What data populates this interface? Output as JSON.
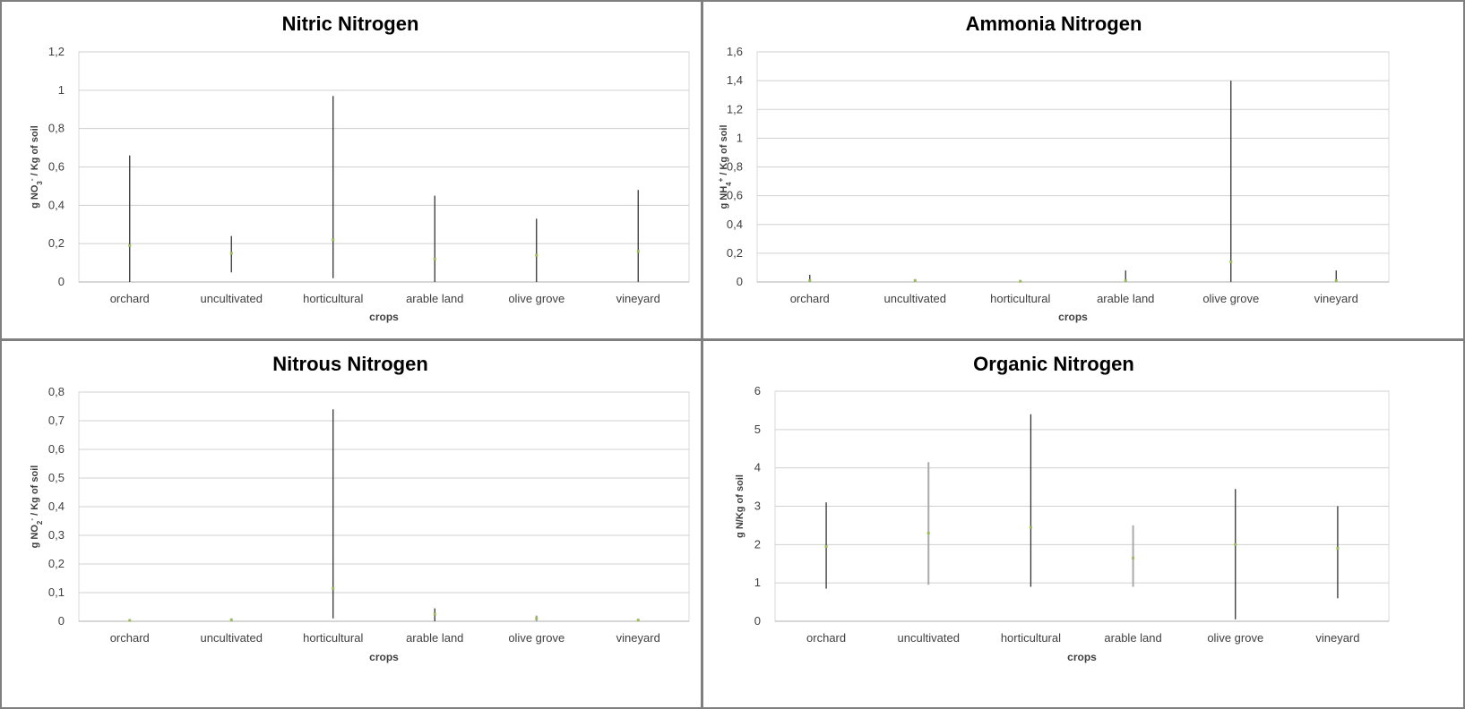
{
  "chart_data": [
    {
      "type": "scatter",
      "title": "Nitric Nitrogen",
      "xlabel": "crops",
      "ylabel_parts": [
        "g NO",
        "3",
        "-",
        " / Kg of soil"
      ],
      "ylim": [
        0,
        1.2
      ],
      "ytick_step": 0.2,
      "yticks": [
        "0",
        "0,2",
        "0,4",
        "0,6",
        "0,8",
        "1",
        "1,2"
      ],
      "grid": true,
      "categories": [
        "orchard",
        "uncultivated",
        "horticultural",
        "arable land",
        "olive grove",
        "vineyard"
      ],
      "series": [
        {
          "mean": [
            0.19,
            0.15,
            0.22,
            0.12,
            0.14,
            0.16
          ],
          "min": [
            0.0,
            0.05,
            0.02,
            0.0,
            0.0,
            0.0
          ],
          "max": [
            0.66,
            0.24,
            0.97,
            0.45,
            0.33,
            0.48
          ],
          "bar_color": [
            "#333333",
            "#333333",
            "#333333",
            "#333333",
            "#333333",
            "#333333"
          ]
        }
      ],
      "mean_color": "#9bbb59"
    },
    {
      "type": "scatter",
      "title": "Ammonia Nitrogen",
      "xlabel": "crops",
      "ylabel_parts": [
        "g NH",
        "4",
        "+",
        " / Kg of soil"
      ],
      "ylim": [
        0,
        1.6
      ],
      "ytick_step": 0.2,
      "yticks": [
        "0",
        "0,2",
        "0,4",
        "0,6",
        "0,8",
        "1",
        "1,2",
        "1,4",
        "1,6"
      ],
      "grid": true,
      "categories": [
        "orchard",
        "uncultivated",
        "horticultural",
        "arable land",
        "olive grove",
        "vineyard"
      ],
      "series": [
        {
          "mean": [
            0.01,
            0.01,
            0.005,
            0.01,
            0.14,
            0.01
          ],
          "min": [
            0.0,
            0.0,
            0.0,
            0.0,
            0.0,
            0.0
          ],
          "max": [
            0.05,
            0.02,
            0.01,
            0.08,
            1.4,
            0.08
          ],
          "bar_color": [
            "#333333",
            "#999999",
            "#999999",
            "#333333",
            "#333333",
            "#333333"
          ]
        }
      ],
      "mean_color": "#9bbb59"
    },
    {
      "type": "scatter",
      "title": "Nitrous Nitrogen",
      "xlabel": "crops",
      "ylabel_parts": [
        "g NO",
        "2",
        "-",
        " / Kg of soil"
      ],
      "ylim": [
        0,
        0.8
      ],
      "ytick_step": 0.1,
      "yticks": [
        "0",
        "0,1",
        "0,2",
        "0,3",
        "0,4",
        "0,5",
        "0,6",
        "0,7",
        "0,8"
      ],
      "grid": true,
      "categories": [
        "orchard",
        "uncultivated",
        "horticultural",
        "arable land",
        "olive grove",
        "vineyard"
      ],
      "series": [
        {
          "mean": [
            0.003,
            0.005,
            0.115,
            0.025,
            0.01,
            0.004
          ],
          "min": [
            0.0,
            0.0,
            0.01,
            0.0,
            0.0,
            0.0
          ],
          "max": [
            0.006,
            0.01,
            0.74,
            0.045,
            0.02,
            0.008
          ],
          "bar_color": [
            "#999999",
            "#999999",
            "#333333",
            "#333333",
            "#999999",
            "#999999"
          ]
        }
      ],
      "mean_color": "#9bbb59"
    },
    {
      "type": "scatter",
      "title": "Organic Nitrogen",
      "xlabel": "crops",
      "ylabel_parts": [
        "g N/Kg of soil",
        "",
        "",
        ""
      ],
      "ylim": [
        0,
        6
      ],
      "ytick_step": 1,
      "yticks": [
        "0",
        "1",
        "2",
        "3",
        "4",
        "5",
        "6"
      ],
      "grid": true,
      "categories": [
        "orchard",
        "uncultivated",
        "horticultural",
        "arable land",
        "olive grove",
        "vineyard"
      ],
      "series": [
        {
          "mean": [
            1.95,
            2.3,
            2.45,
            1.65,
            2.0,
            1.9
          ],
          "min": [
            0.85,
            0.95,
            0.9,
            0.9,
            0.05,
            0.6
          ],
          "max": [
            3.1,
            4.15,
            5.4,
            2.5,
            3.45,
            3.0
          ],
          "bar_color": [
            "#333333",
            "#aaaaaa",
            "#333333",
            "#aaaaaa",
            "#333333",
            "#333333"
          ]
        }
      ],
      "mean_color": "#9bbb59"
    }
  ]
}
